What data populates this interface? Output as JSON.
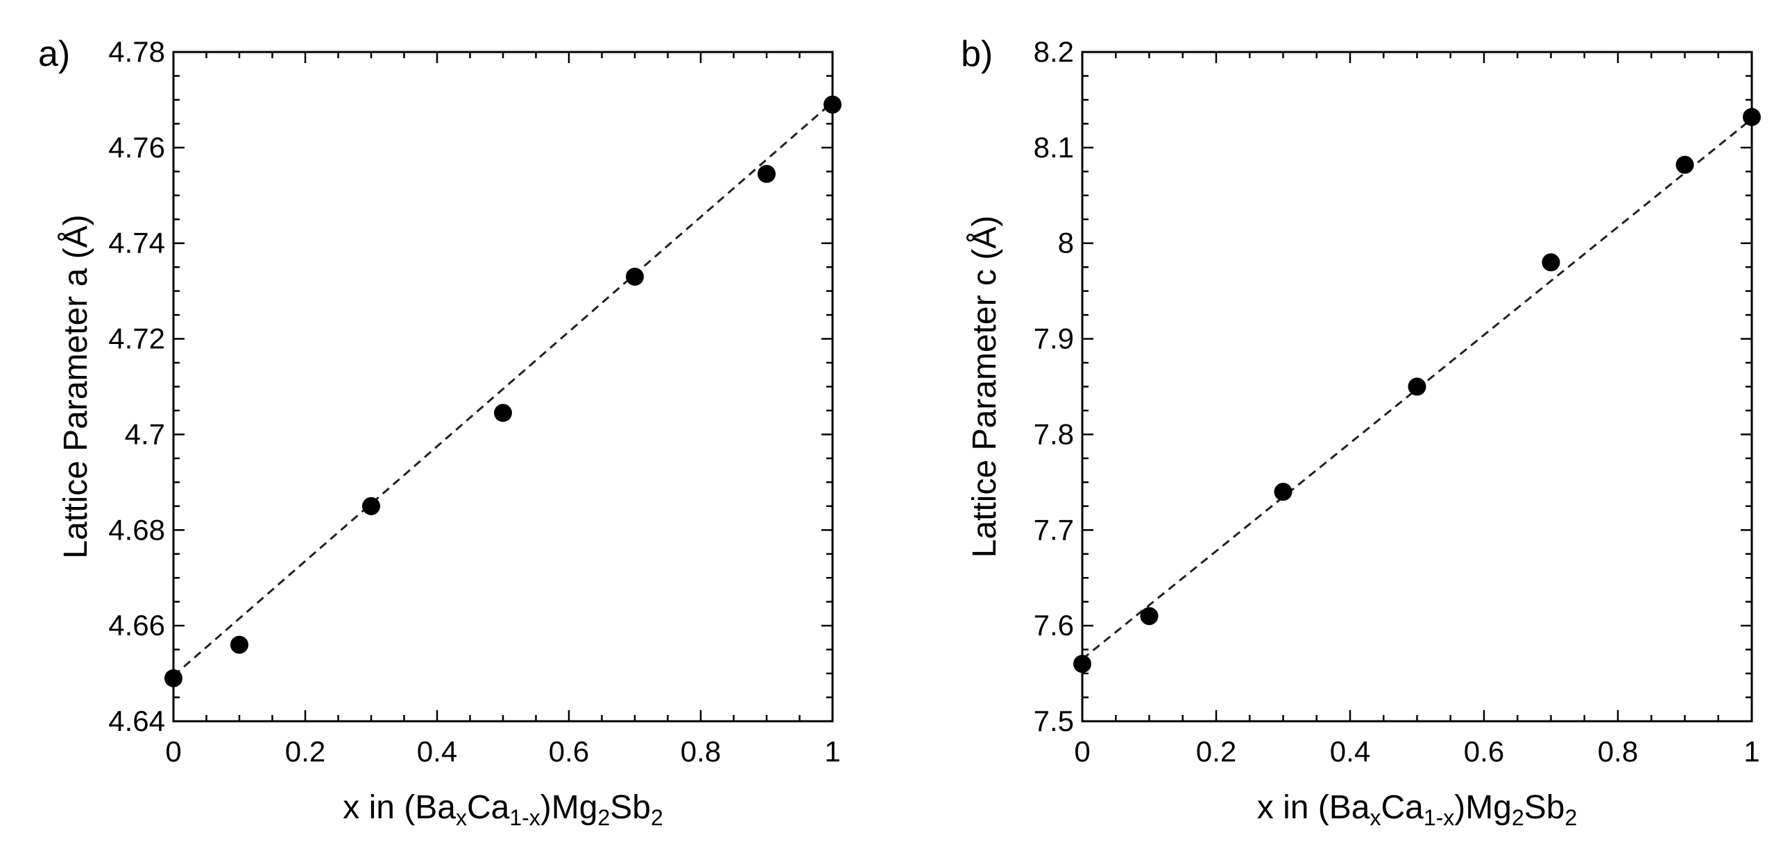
{
  "chart_data": [
    {
      "type": "scatter",
      "panel_label": "a)",
      "xlabel": {
        "pre": "x in (Ba",
        "sub1": "x",
        "mid1": "Ca",
        "sub2": "1-x",
        "mid2": ")Mg",
        "sub3": "2",
        "mid3": "Sb",
        "sub4": "2"
      },
      "ylabel": "Lattice Parameter a (Å)",
      "xlim": [
        0,
        1
      ],
      "ylim": [
        4.64,
        4.78
      ],
      "xticks": [
        0,
        0.2,
        0.4,
        0.6,
        0.8,
        1
      ],
      "xtick_labels": [
        "0",
        "0.2",
        "0.4",
        "0.6",
        "0.8",
        "1"
      ],
      "yticks": [
        4.64,
        4.66,
        4.68,
        4.7,
        4.72,
        4.74,
        4.76,
        4.78
      ],
      "ytick_labels": [
        "4.64",
        "4.66",
        "4.68",
        "4.7",
        "4.72",
        "4.74",
        "4.76",
        "4.78"
      ],
      "points": {
        "x": [
          0,
          0.1,
          0.3,
          0.5,
          0.7,
          0.9,
          1.0
        ],
        "y": [
          4.649,
          4.656,
          4.685,
          4.7045,
          4.733,
          4.7545,
          4.769
        ]
      },
      "fit": {
        "x": [
          0,
          1
        ],
        "y": [
          4.6495,
          4.7695
        ],
        "style": "dashed"
      },
      "grid": false,
      "legend": "none"
    },
    {
      "type": "scatter",
      "panel_label": "b)",
      "xlabel": {
        "pre": "x in (Ba",
        "sub1": "x",
        "mid1": "Ca",
        "sub2": "1-x",
        "mid2": ")Mg",
        "sub3": "2",
        "mid3": "Sb",
        "sub4": "2"
      },
      "ylabel": "Lattice Parameter c (Å)",
      "xlim": [
        0,
        1
      ],
      "ylim": [
        7.5,
        8.2
      ],
      "xticks": [
        0,
        0.2,
        0.4,
        0.6,
        0.8,
        1
      ],
      "xtick_labels": [
        "0",
        "0.2",
        "0.4",
        "0.6",
        "0.8",
        "1"
      ],
      "yticks": [
        7.5,
        7.6,
        7.7,
        7.8,
        7.9,
        8.0,
        8.1,
        8.2
      ],
      "ytick_labels": [
        "7.5",
        "7.6",
        "7.7",
        "7.8",
        "7.9",
        "8",
        "8.1",
        "8.2"
      ],
      "points": {
        "x": [
          0,
          0.1,
          0.3,
          0.5,
          0.7,
          0.9,
          1.0
        ],
        "y": [
          7.56,
          7.61,
          7.74,
          7.85,
          7.98,
          8.082,
          8.132
        ]
      },
      "fit": {
        "x": [
          0,
          1
        ],
        "y": [
          7.565,
          8.13
        ],
        "style": "dashed"
      },
      "grid": false,
      "legend": "none"
    }
  ]
}
